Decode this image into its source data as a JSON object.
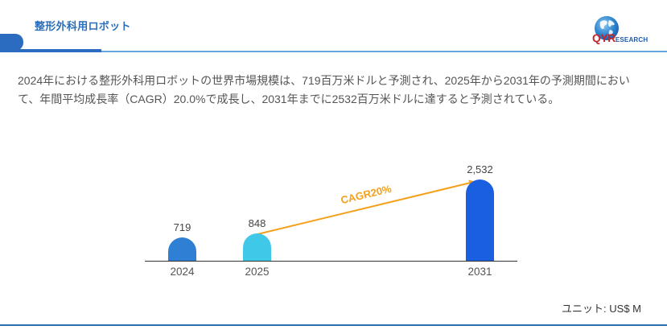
{
  "header": {
    "title": "整形外科用ロボット",
    "logo": {
      "brand_main": "QYR",
      "brand_rest": "ESEARCH",
      "icon": "globe-icon"
    }
  },
  "description": {
    "lines": [
      "2024年における整形外科用ロボットの世界市場規模は、719百万米ドルと予測され、2025年から2031年の予測期間におい",
      "て、年間平均成長率（CAGR）20.0%で成長し、2031年までに2532百万米ドルに達すると予測されている。"
    ]
  },
  "colors": {
    "accent": "#2b6cc0",
    "bar_2024": "#2f7fd4",
    "bar_2025": "#3fc8e8",
    "bar_2031": "#1a5fe0",
    "cagr_arrow": "#f5a01a"
  },
  "chart_data": {
    "type": "bar",
    "title": "",
    "categories": [
      "2024",
      "2025",
      "2031"
    ],
    "values": [
      719,
      848,
      2532
    ],
    "value_labels": [
      "719",
      "848",
      "2,532"
    ],
    "bar_colors": [
      "#2f7fd4",
      "#3fc8e8",
      "#1a5fe0"
    ],
    "xlabel": "",
    "ylabel": "",
    "ylim": [
      0,
      2532
    ],
    "grid": false,
    "legend": null,
    "annotations": [
      {
        "type": "arrow",
        "from": "2025",
        "to": "2031",
        "label": "CAGR20%",
        "color": "#f5a01a"
      }
    ],
    "unit": "ユニット: US$ M"
  },
  "footer": {
    "unit_label": "ユニット: US$ M"
  }
}
